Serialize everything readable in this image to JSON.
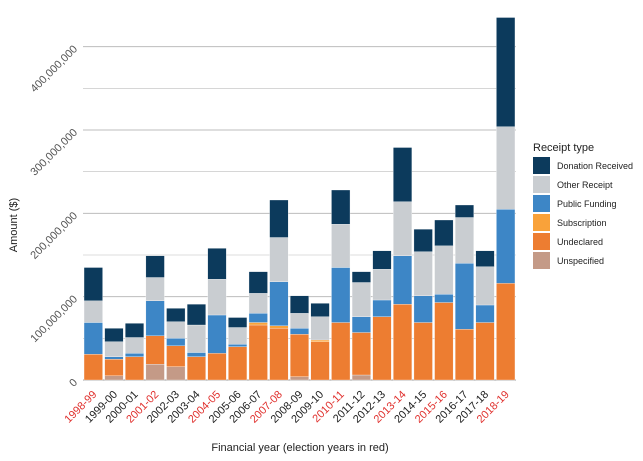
{
  "colors": {
    "election_year": "#e0312e",
    "normal_year": "#222222",
    "grid": "#bdbdbd",
    "axis": "#999999"
  },
  "chart_data": {
    "type": "bar",
    "stacked": true,
    "xlabel": "Financial year (election years in red)",
    "ylabel": "Amount ($)",
    "ylim": [
      0,
      450000000
    ],
    "yticks": [
      {
        "value": 0,
        "label": "0"
      },
      {
        "value": 100000000,
        "label": "100,000,000"
      },
      {
        "value": 200000000,
        "label": "200,000,000"
      },
      {
        "value": 300000000,
        "label": "300,000,000"
      },
      {
        "value": 400000000,
        "label": "400,000,000"
      }
    ],
    "grid": true,
    "legend_title": "Receipt type",
    "legend_position": "right",
    "categories": [
      "1998-99",
      "1999-00",
      "2000-01",
      "2001-02",
      "2002-03",
      "2003-04",
      "2004-05",
      "2005-06",
      "2006-07",
      "2007-08",
      "2008-09",
      "2009-10",
      "2010-11",
      "2011-12",
      "2012-13",
      "2013-14",
      "2014-15",
      "2015-16",
      "2016-17",
      "2017-18",
      "2018-19"
    ],
    "election_years": [
      "1998-99",
      "2001-02",
      "2004-05",
      "2007-08",
      "2010-11",
      "2013-14",
      "2015-16",
      "2018-19"
    ],
    "series": [
      {
        "name": "Unspecified",
        "color": "#c49a87",
        "values": [
          0,
          5000000,
          0,
          19000000,
          16000000,
          0,
          0,
          0,
          0,
          0,
          4000000,
          0,
          0,
          6000000,
          0,
          0,
          0,
          0,
          0,
          0,
          0
        ]
      },
      {
        "name": "Undeclared",
        "color": "#ed7d31",
        "values": [
          31000000,
          20000000,
          28000000,
          34000000,
          25000000,
          28000000,
          32000000,
          40000000,
          66000000,
          62000000,
          51000000,
          46000000,
          69000000,
          51000000,
          76000000,
          91000000,
          69000000,
          93000000,
          61000000,
          69000000,
          116000000
        ]
      },
      {
        "name": "Subscription",
        "color": "#f9a23a",
        "values": [
          0,
          0,
          0,
          0,
          0,
          0,
          0,
          0,
          3000000,
          3000000,
          0,
          2000000,
          0,
          0,
          0,
          0,
          0,
          0,
          0,
          0,
          0
        ]
      },
      {
        "name": "Public Funding",
        "color": "#3d86c6",
        "values": [
          38000000,
          3000000,
          4000000,
          42000000,
          9000000,
          5000000,
          46000000,
          3000000,
          11000000,
          53000000,
          7000000,
          0,
          66000000,
          19000000,
          20000000,
          58000000,
          32000000,
          10000000,
          79000000,
          21000000,
          89000000
        ]
      },
      {
        "name": "Other Receipt",
        "color": "#c9cdd1",
        "values": [
          26000000,
          18000000,
          19000000,
          28000000,
          20000000,
          33000000,
          43000000,
          20000000,
          24000000,
          53000000,
          18000000,
          28000000,
          52000000,
          41000000,
          37000000,
          65000000,
          53000000,
          58000000,
          55000000,
          46000000,
          99000000
        ]
      },
      {
        "name": "Donation Received",
        "color": "#0c3a5c",
        "values": [
          40000000,
          16000000,
          17000000,
          26000000,
          16000000,
          25000000,
          37000000,
          12000000,
          26000000,
          45000000,
          21000000,
          16000000,
          41000000,
          13000000,
          22000000,
          65000000,
          27000000,
          31000000,
          15000000,
          19000000,
          131000000
        ]
      }
    ]
  }
}
